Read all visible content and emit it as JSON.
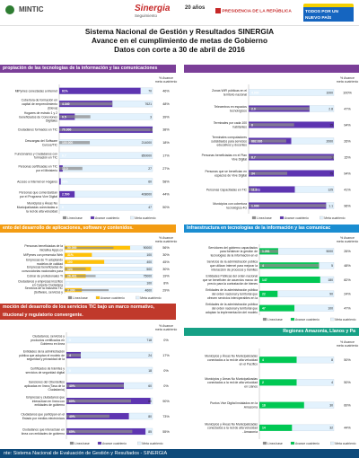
{
  "header": {
    "logo_mintic": "MINTIC",
    "logo_sinergia": "Sinergia",
    "logo_sinergia_sub": "Seguimiento",
    "logo_years": "20 años",
    "logo_presidencia": "PRESIDENCIA DE LA REPÚBLICA",
    "logo_pais": "TODOS POR UN NUEVO PAÍS"
  },
  "title": {
    "line1": "Sistema Nacional de Gestión y Resultados SINERGIA",
    "line2": "Avance en el cumplimiento de metas de Gobierno",
    "line3": "Datos con corte a 30 de abril de 2016"
  },
  "sections": {
    "s1": "propiación de las tecnologías de la información y las comunicaciones",
    "s2": "ento del desarrollo de aplicaciones, software y contenidos.",
    "s3": "Infraestructura en tecnologías de la información y las comunicac",
    "s4": "moción del desarrollo de los servicios TIC bajo un marco normativo, titucional y regulatorio convergente.",
    "s5": "Regiones Amazonia, Llanos y Pa"
  },
  "colors": {
    "linea_base": "#8e8e8e",
    "avance_cuatrienio": "#00c853",
    "avance_cuatrienio_dark": "#2e7d32",
    "avance_yellow": "#ffc107",
    "avance_blue": "#1e88e5",
    "avance_purple": "#5e35b1",
    "meta": "#e3f2fd",
    "section_purple": "#7b3f98",
    "section_orange": "#f39c12",
    "section_blue": "#1a8dd1",
    "section_red": "#c0392b",
    "section_teal": "#16a085"
  },
  "legend": {
    "linea_base": "Línea base",
    "avance": "Avance cuatrienio",
    "meta": "Meta cuatrienio",
    "pct_header": "% Avance meta cuatrienio"
  },
  "chart_data": [
    {
      "type": "bar",
      "orientation": "horizontal",
      "title": "",
      "categories": [
        "MiPymes conectadas a internet",
        "Cobertura de formación en capital de emprendimiento (Eleva)",
        "Hogares de estrato 1 y 2 beneficiados de Conexiones Digitales",
        "Ciudadanos formados en TIC",
        "Descargas del Software Cursos/TIC",
        "Funcionarios y Ciudadanos con formación en TIC",
        "Personas certificadas en TIC por el Ministerio",
        "Acceso a Internet en Hogares",
        "Personas que comercializan por el Programa Vive Digital",
        "Municipios y Áreas No Municipalizadas conectadas a la red de alta velocidad"
      ],
      "series": [
        {
          "name": "Línea base",
          "values": [
            0,
            4340,
            1,
            1,
            70000,
            0,
            6.7,
            0,
            2500,
            0
          ]
        },
        {
          "name": "Avance cuatrienio",
          "values": [
            61,
            4340,
            0.5,
            1,
            1,
            0,
            1,
            1,
            67244,
            0
          ]
        },
        {
          "name": "Meta cuatrienio",
          "values": [
            70,
            7621,
            3,
            1,
            214000,
            850000,
            27,
            60,
            408000,
            47
          ]
        }
      ],
      "pct": [
        "46%",
        "48%",
        "39%",
        "38%",
        "18%",
        "17%",
        "27%",
        "58%",
        "44%",
        "50%"
      ],
      "value_labels": [
        "61%",
        "4.340",
        "0.5",
        "70.000",
        "100.000",
        "6.7",
        "13.0",
        "46%",
        "2.500",
        "0"
      ]
    },
    {
      "type": "bar",
      "orientation": "horizontal",
      "title": "",
      "categories": [
        "Zonas WiFi públicas en el territorio nacional",
        "Telecentros en espacios tecnológicos",
        "Terminales por cada 100 habitantes",
        "Terminales computadores subsidiados para servicios educativos y docentes",
        "Personas beneficiadas en el Plan Vive Digital",
        "Personas que se benefician en espacios de Vive Digital",
        "Personas Capacitadas en TIC",
        "Municipios con cobertura tecnológica 4G"
      ],
      "series": [
        {
          "name": "Línea base",
          "values": [
            0,
            2.0,
            8,
            882,
            8.2,
            34,
            11.811,
            1.0
          ]
        },
        {
          "name": "Avance cuatrienio",
          "values": [
            1,
            2.0,
            16,
            1000,
            1,
            94,
            67.744,
            1.0
          ]
        },
        {
          "name": "Meta cuatrienio",
          "values": [
            1000,
            2.8,
            15,
            2000,
            1.0,
            75,
            125,
            1.1
          ]
        }
      ],
      "pct": [
        "100%",
        "47%",
        "94%",
        "26%",
        "15%",
        "94%",
        "41%",
        "96%"
      ],
      "value_labels": [
        "4.000",
        "2.0",
        "8",
        "882.026",
        "8.7",
        "34",
        "11.811",
        "1.000"
      ]
    },
    {
      "type": "bar",
      "orientation": "horizontal",
      "title": "",
      "categories": [
        "Personas beneficiadas de la iniciativa Apps.co",
        "MiPymes con presencia Web",
        "Empresas de TI adoptando modelos de calidad",
        "Empresas beneficiadas de convocatorias nacionales para la generación de contenidos digitales",
        "Cobrar de profesionales TI",
        "Ciudadanos y empresas inscritos en Carpeta Ciudadana",
        "Servicios de la Industria TIC (Software, servicios y conexión, Apps y Contenidos Digitales, Telecomunicaciones e Infraestructura TIC) Atendidos"
      ],
      "series": [
        {
          "name": "Línea base",
          "values": [
            50000,
            0,
            0,
            120,
            26431,
            0,
            2300
          ]
        },
        {
          "name": "Avance cuatrienio",
          "values": [
            67000,
            31,
            180,
            150,
            18000,
            0,
            900
          ]
        },
        {
          "name": "Meta cuatrienio",
          "values": [
            90000,
            100,
            400,
            500,
            75000,
            100,
            4600
          ]
        }
      ],
      "pct": [
        "56%",
        "30%",
        "45%",
        "30%",
        "19%",
        "8%",
        "29%"
      ],
      "value_labels": [
        "50.000",
        "31%",
        "100",
        "124",
        "26.431",
        "0",
        "2.300"
      ]
    },
    {
      "type": "bar",
      "orientation": "horizontal",
      "title": "",
      "categories": [
        "Servidores del gobierno capacitados para fortalecer la gestión de tecnologías de la información en el estado",
        "Servicios de la administración pública que utilizan internet para mejorar la interacción de procesos y trámites",
        "Entidades Públicas del orden nacional que se beneficien de acuerdos marco de precio para la contratación de bienes y servicios de TIC",
        "Entidades de la administración pública del orden nacional y territorial que ofrecen servicios interoperables en la plataforma del Estado",
        "Entidades de la administración pública del orden nacional y territorial que adoptan la implementación del modelo de gestión de TIC"
      ],
      "series": [
        {
          "name": "Línea base",
          "values": [
            1261,
            4,
            0,
            0,
            0
          ]
        },
        {
          "name": "Avance cuatrienio",
          "values": [
            1261,
            4,
            147,
            22,
            47
          ]
        },
        {
          "name": "Meta cuatrienio",
          "values": [
            5000,
            5,
            180,
            90,
            100
          ]
        }
      ],
      "pct": [
        "26%",
        "48%",
        "82%",
        "24%",
        "47%"
      ],
      "value_labels": [
        "1.261",
        "4",
        "147",
        "22",
        "47"
      ]
    },
    {
      "type": "bar",
      "orientation": "horizontal",
      "title": "",
      "categories": [
        "Ciudadanos, servicios y productos certificados en Gobierno en línea",
        "Entidades de la administración pública que adoptan el modelo de seguridad y privacidad de la información en el Estado",
        "Certificados de trámites y servicios de seguridad digital",
        "Sanciones del Ciberdelitos aplicadas en línea (Tasa de la Ciudadanía)",
        "Empresas y ciudadanos que interactúan en línea con entidades de gobierno",
        "Ciudadanos que participan en el Estado por medios electrónicos",
        "Ciudadanos que interactúan en línea con entidades de gobierno"
      ],
      "series": [
        {
          "name": "Línea base",
          "values": [
            0,
            4,
            0,
            40,
            60,
            40,
            65
          ]
        },
        {
          "name": "Avance cuatrienio",
          "values": [
            0,
            4,
            0,
            40,
            78,
            58,
            78
          ]
        },
        {
          "name": "Meta cuatrienio",
          "values": [
            718,
            24,
            18,
            60,
            80,
            80,
            85
          ]
        }
      ],
      "pct": [
        "0%",
        "17%",
        "0%",
        "0%",
        "90%",
        "73%",
        "55%"
      ],
      "value_labels": [
        "0",
        "4",
        "0",
        "40%",
        "60%",
        "40%",
        "65%"
      ]
    },
    {
      "type": "bar",
      "orientation": "horizontal",
      "title": "",
      "categories": [
        "Municipios y Áreas No Municipalizadas conectados a la red de alta velocidad en el Pacífico",
        "Municipios y Áreas No Municipalizadas conectados a la red de alta velocidad en Llanos",
        "Puntos Vive Digital instalados en la Amazonía",
        "Municipios y Áreas No Municipalizadas conectados a la red de alta velocidad - Amazonía"
      ],
      "series": [
        {
          "name": "Línea base",
          "values": [
            0,
            0,
            0,
            0
          ]
        },
        {
          "name": "Avance cuatrienio",
          "values": [
            4,
            2,
            18,
            14
          ]
        },
        {
          "name": "Meta cuatrienio",
          "values": [
            8,
            4,
            30,
            32
          ]
        }
      ],
      "pct": [
        "50%",
        "50%",
        "60%",
        "44%"
      ],
      "value_labels": [
        "4",
        "2",
        "18",
        "14"
      ]
    }
  ],
  "footer": {
    "text": "nte: Sistema Nacional de Evaluación de Gestión y Resultados - SINERGIA"
  }
}
